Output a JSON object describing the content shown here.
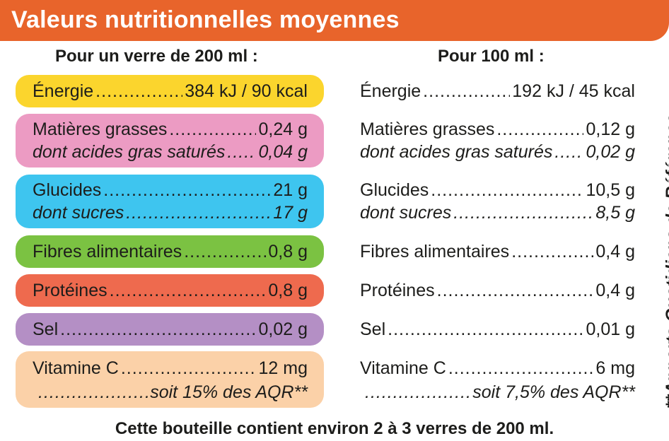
{
  "title": "Valeurs nutritionnelles moyennes",
  "colors": {
    "banner": "#e8642b",
    "energie": "#fbd52d",
    "matieres": "#ec9bc3",
    "glucides": "#3ec5ef",
    "fibres": "#7bc242",
    "proteines": "#ee6a4e",
    "sel": "#b48fc5",
    "vitamine": "#fbd1a8"
  },
  "left_heading": "Pour un verre de 200 ml :",
  "right_heading": "Pour 100 ml :",
  "left": {
    "energie_label": "Énergie",
    "energie_value": "384 kJ / 90 kcal",
    "matieres_label": "Matières grasses",
    "matieres_value": "0,24 g",
    "satures_label": "dont acides gras saturés",
    "satures_value": "0,04 g",
    "glucides_label": "Glucides",
    "glucides_value": "21 g",
    "sucres_label": "dont sucres",
    "sucres_value": "17 g",
    "fibres_label": "Fibres alimentaires",
    "fibres_value": "0,8 g",
    "proteines_label": "Protéines",
    "proteines_value": "0,8 g",
    "sel_label": "Sel",
    "sel_value": "0,02 g",
    "vitamine_label": "Vitamine C",
    "vitamine_value": "12 mg",
    "aqr_value": "soit 15% des AQR**"
  },
  "right": {
    "energie_label": "Énergie",
    "energie_value": "192 kJ / 45 kcal",
    "matieres_label": "Matières grasses",
    "matieres_value": "0,12 g",
    "satures_label": "dont acides gras saturés",
    "satures_value": "0,02 g",
    "glucides_label": "Glucides",
    "glucides_value": "10,5 g",
    "sucres_label": "dont sucres",
    "sucres_value": "8,5 g",
    "fibres_label": "Fibres alimentaires",
    "fibres_value": "0,4 g",
    "proteines_label": "Protéines",
    "proteines_value": "0,4 g",
    "sel_label": "Sel",
    "sel_value": "0,01 g",
    "vitamine_label": "Vitamine C",
    "vitamine_value": "6 mg",
    "aqr_value": "soit 7,5% des AQR**"
  },
  "side_note": "**Apports Quotidiens de Référence",
  "footer": "Cette bouteille contient environ 2 à 3 verres de 200 ml."
}
